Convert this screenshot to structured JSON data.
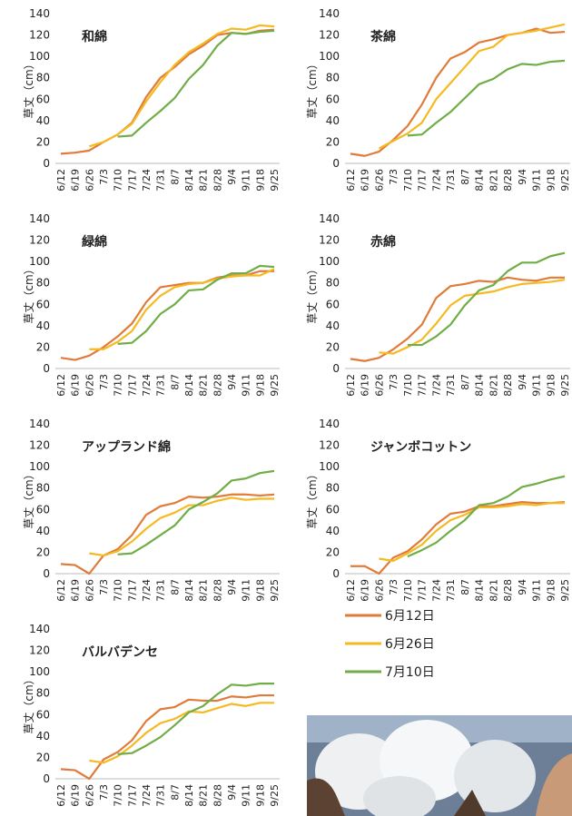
{
  "legend": [
    {
      "name": "6月12日",
      "color": "#e07b39"
    },
    {
      "name": "6月26日",
      "color": "#f5b921"
    },
    {
      "name": "7月10日",
      "color": "#70ad47"
    }
  ],
  "chart_data": [
    {
      "type": "line",
      "title": "和綿",
      "ylabel": "草丈（cm）",
      "categories": [
        "6/12",
        "6/19",
        "6/26",
        "7/3",
        "7/10",
        "7/17",
        "7/24",
        "7/31",
        "8/7",
        "8/14",
        "8/21",
        "8/28",
        "9/4",
        "9/11",
        "9/18",
        "9/25"
      ],
      "ylim": [
        0,
        140
      ],
      "yticks": [
        0,
        20,
        40,
        60,
        80,
        100,
        120,
        140
      ],
      "grid": false,
      "series": [
        {
          "color": "#e07b39",
          "values": [
            9,
            10,
            12,
            20,
            27,
            38,
            62,
            80,
            90,
            102,
            110,
            120,
            122,
            121,
            124,
            125
          ]
        },
        {
          "color": "#f5b921",
          "values": [
            null,
            null,
            16,
            20,
            27,
            37,
            58,
            76,
            92,
            104,
            112,
            121,
            126,
            125,
            129,
            128
          ]
        },
        {
          "color": "#70ad47",
          "values": [
            null,
            null,
            null,
            null,
            25,
            26,
            38,
            49,
            61,
            79,
            92,
            110,
            122,
            121,
            123,
            124
          ]
        }
      ]
    },
    {
      "type": "line",
      "title": "茶綿",
      "ylabel": "草丈（cm）",
      "categories": [
        "6/12",
        "6/19",
        "6/26",
        "7/3",
        "7/10",
        "7/17",
        "7/24",
        "7/31",
        "8/7",
        "8/14",
        "8/21",
        "8/28",
        "9/4",
        "9/11",
        "9/18",
        "9/25"
      ],
      "ylim": [
        0,
        140
      ],
      "yticks": [
        0,
        20,
        40,
        60,
        80,
        100,
        120,
        140
      ],
      "grid": false,
      "series": [
        {
          "color": "#e07b39",
          "values": [
            9,
            7,
            11,
            22,
            35,
            55,
            80,
            98,
            104,
            113,
            116,
            120,
            122,
            126,
            122,
            123
          ]
        },
        {
          "color": "#f5b921",
          "values": [
            null,
            null,
            14,
            21,
            28,
            38,
            60,
            75,
            90,
            105,
            109,
            120,
            122,
            124,
            127,
            130
          ]
        },
        {
          "color": "#70ad47",
          "values": [
            null,
            null,
            null,
            null,
            26,
            27,
            38,
            48,
            61,
            74,
            79,
            88,
            93,
            92,
            95,
            96
          ]
        }
      ]
    },
    {
      "type": "line",
      "title": "緑綿",
      "ylabel": "草丈（cm）",
      "categories": [
        "6/12",
        "6/19",
        "6/26",
        "7/3",
        "7/10",
        "7/17",
        "7/24",
        "7/31",
        "8/7",
        "8/14",
        "8/21",
        "8/28",
        "9/4",
        "9/11",
        "9/18",
        "9/25"
      ],
      "ylim": [
        0,
        140
      ],
      "yticks": [
        0,
        20,
        40,
        60,
        80,
        100,
        120,
        140
      ],
      "grid": false,
      "series": [
        {
          "color": "#e07b39",
          "values": [
            10,
            8,
            12,
            20,
            30,
            42,
            62,
            76,
            78,
            80,
            80,
            85,
            87,
            87,
            91,
            91
          ]
        },
        {
          "color": "#f5b921",
          "values": [
            null,
            null,
            18,
            18,
            25,
            35,
            55,
            68,
            76,
            79,
            80,
            84,
            86,
            87,
            87,
            93
          ]
        },
        {
          "color": "#70ad47",
          "values": [
            null,
            null,
            null,
            null,
            23,
            24,
            35,
            51,
            60,
            73,
            74,
            83,
            89,
            89,
            96,
            95
          ]
        }
      ]
    },
    {
      "type": "line",
      "title": "赤綿",
      "ylabel": "草丈（cm）",
      "categories": [
        "6/12",
        "6/19",
        "6/26",
        "7/3",
        "7/10",
        "7/17",
        "7/24",
        "7/31",
        "8/7",
        "8/14",
        "8/21",
        "8/28",
        "9/4",
        "9/11",
        "9/18",
        "9/25"
      ],
      "ylim": [
        0,
        140
      ],
      "yticks": [
        0,
        20,
        40,
        60,
        80,
        100,
        120,
        140
      ],
      "grid": false,
      "series": [
        {
          "color": "#e07b39",
          "values": [
            9,
            7,
            10,
            18,
            28,
            41,
            66,
            77,
            79,
            82,
            81,
            85,
            83,
            82,
            85,
            85
          ]
        },
        {
          "color": "#f5b921",
          "values": [
            null,
            null,
            15,
            14,
            20,
            27,
            42,
            59,
            68,
            70,
            72,
            76,
            79,
            80,
            81,
            83
          ]
        },
        {
          "color": "#70ad47",
          "values": [
            null,
            null,
            null,
            null,
            22,
            22,
            30,
            41,
            59,
            73,
            78,
            91,
            99,
            99,
            105,
            108
          ]
        }
      ]
    },
    {
      "type": "line",
      "title": "アップランド綿",
      "ylabel": "草丈（cm）",
      "categories": [
        "6/12",
        "6/19",
        "6/26",
        "7/3",
        "7/10",
        "7/17",
        "7/24",
        "7/31",
        "8/7",
        "8/14",
        "8/21",
        "8/28",
        "9/4",
        "9/11",
        "9/18",
        "9/25"
      ],
      "ylim": [
        0,
        140
      ],
      "yticks": [
        0,
        20,
        40,
        60,
        80,
        100,
        120,
        140
      ],
      "grid": false,
      "series": [
        {
          "color": "#e07b39",
          "values": [
            9,
            8,
            0,
            17,
            23,
            36,
            55,
            63,
            66,
            72,
            71,
            72,
            74,
            74,
            73,
            74
          ]
        },
        {
          "color": "#f5b921",
          "values": [
            null,
            null,
            19,
            17,
            21,
            30,
            42,
            52,
            57,
            64,
            64,
            68,
            71,
            69,
            70,
            70
          ]
        },
        {
          "color": "#70ad47",
          "values": [
            null,
            null,
            null,
            null,
            18,
            19,
            27,
            36,
            45,
            60,
            67,
            75,
            87,
            89,
            94,
            96
          ]
        }
      ]
    },
    {
      "type": "line",
      "title": "ジャンボコットン",
      "ylabel": "草丈（cm）",
      "categories": [
        "6/12",
        "6/19",
        "6/26",
        "7/3",
        "7/10",
        "7/17",
        "7/24",
        "7/31",
        "8/7",
        "8/14",
        "8/21",
        "8/28",
        "9/4",
        "9/11",
        "9/18",
        "9/25"
      ],
      "ylim": [
        0,
        140
      ],
      "yticks": [
        0,
        20,
        40,
        60,
        80,
        100,
        120,
        140
      ],
      "grid": false,
      "series": [
        {
          "color": "#e07b39",
          "values": [
            7,
            7,
            0,
            15,
            21,
            32,
            46,
            56,
            58,
            63,
            63,
            65,
            67,
            66,
            66,
            67
          ]
        },
        {
          "color": "#f5b921",
          "values": [
            null,
            null,
            14,
            12,
            19,
            27,
            40,
            50,
            55,
            62,
            62,
            63,
            65,
            64,
            66,
            66
          ]
        },
        {
          "color": "#70ad47",
          "values": [
            null,
            null,
            null,
            null,
            16,
            22,
            29,
            40,
            50,
            64,
            66,
            72,
            81,
            84,
            88,
            91
          ]
        }
      ]
    },
    {
      "type": "line",
      "title": "バルバデンセ",
      "ylabel": "草丈（cm）",
      "categories": [
        "6/12",
        "6/19",
        "6/26",
        "7/3",
        "7/10",
        "7/17",
        "7/24",
        "7/31",
        "8/7",
        "8/14",
        "8/21",
        "8/28",
        "9/4",
        "9/11",
        "9/18",
        "9/25"
      ],
      "ylim": [
        0,
        140
      ],
      "yticks": [
        0,
        20,
        40,
        60,
        80,
        100,
        120,
        140
      ],
      "grid": false,
      "series": [
        {
          "color": "#e07b39",
          "values": [
            9,
            8,
            0,
            18,
            25,
            36,
            54,
            65,
            67,
            74,
            73,
            73,
            77,
            76,
            78,
            78
          ]
        },
        {
          "color": "#f5b921",
          "values": [
            null,
            null,
            17,
            15,
            21,
            31,
            43,
            52,
            56,
            63,
            62,
            66,
            70,
            68,
            71,
            71
          ]
        },
        {
          "color": "#70ad47",
          "values": [
            null,
            null,
            null,
            null,
            23,
            24,
            31,
            39,
            50,
            62,
            68,
            79,
            88,
            87,
            89,
            89
          ]
        }
      ]
    }
  ]
}
